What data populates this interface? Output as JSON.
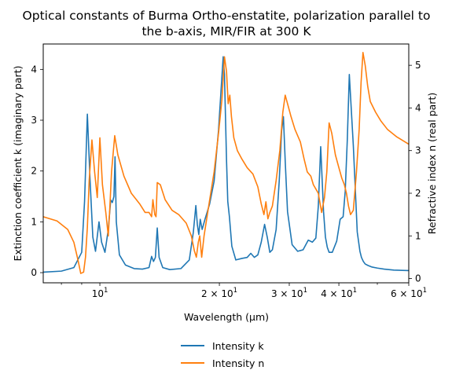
{
  "chart_data": {
    "type": "line",
    "title_line1": "Optical constants of Burma Ortho-enstatite, polarization parallel to",
    "title_line2": "the b-axis, MIR/FIR at 300 K",
    "xlabel": "Wavelength (μm)",
    "ylabel_left": "Extinction coefficient k (imaginary part)",
    "ylabel_right": "Refractive index n (real part)",
    "x_scale": "log",
    "xlim": [
      7.2,
      60
    ],
    "ylim_left": [
      -0.2,
      4.5
    ],
    "ylim_right": [
      -0.1,
      5.5
    ],
    "x_tick_labels": [
      {
        "value": 10,
        "base": "10",
        "exp": "1"
      },
      {
        "value": 20,
        "base": "2 × 10",
        "exp": "1"
      },
      {
        "value": 30,
        "base": "3 × 10",
        "exp": "1"
      },
      {
        "value": 40,
        "base": "4 × 10",
        "exp": "1"
      },
      {
        "value": 60,
        "base": "6 × 10",
        "exp": "1"
      }
    ],
    "y_left_ticks": [
      "0",
      "1",
      "2",
      "3",
      "4"
    ],
    "y_right_ticks": [
      "0",
      "1",
      "2",
      "3",
      "4",
      "5"
    ],
    "legend_placement": "bottom-center",
    "grid": false,
    "series": [
      {
        "name": "Intensity k",
        "axis": "left",
        "color": "#1f77b4",
        "x": [
          7.2,
          8.0,
          8.6,
          9.0,
          9.15,
          9.3,
          9.45,
          9.6,
          9.75,
          9.95,
          10.1,
          10.3,
          10.5,
          10.65,
          10.75,
          10.85,
          10.92,
          11.0,
          11.2,
          11.6,
          12.2,
          12.8,
          13.3,
          13.5,
          13.65,
          13.8,
          13.95,
          14.1,
          14.4,
          15.0,
          16.0,
          16.8,
          17.2,
          17.45,
          17.6,
          17.75,
          17.9,
          18.1,
          18.4,
          18.9,
          19.4,
          19.9,
          20.2,
          20.45,
          20.6,
          20.85,
          21.0,
          21.2,
          21.5,
          22.0,
          22.8,
          23.5,
          24.0,
          24.5,
          25.0,
          25.5,
          26.0,
          26.4,
          26.8,
          27.2,
          27.8,
          28.3,
          28.7,
          29.0,
          29.3,
          29.7,
          30.5,
          31.5,
          32.5,
          33.5,
          34.3,
          35.0,
          35.5,
          36.0,
          36.6,
          37.0,
          37.4,
          37.8,
          38.5,
          39.5,
          40.3,
          41.0,
          41.5,
          42.0,
          42.5,
          43.5,
          44.5,
          45.2,
          45.6,
          46.1,
          46.6,
          47.4,
          48.5,
          50.0,
          52.0,
          55.0,
          60.0
        ],
        "y": [
          0.01,
          0.03,
          0.1,
          0.4,
          1.4,
          3.12,
          1.8,
          0.7,
          0.42,
          1.0,
          0.6,
          0.4,
          0.85,
          1.43,
          1.38,
          1.5,
          2.28,
          1.0,
          0.35,
          0.15,
          0.08,
          0.07,
          0.1,
          0.32,
          0.22,
          0.3,
          0.88,
          0.3,
          0.1,
          0.06,
          0.08,
          0.25,
          0.8,
          1.32,
          0.95,
          0.75,
          1.05,
          0.85,
          1.05,
          1.35,
          1.8,
          2.8,
          3.6,
          4.25,
          3.9,
          2.2,
          1.4,
          1.1,
          0.52,
          0.25,
          0.28,
          0.3,
          0.38,
          0.3,
          0.35,
          0.6,
          0.95,
          0.7,
          0.4,
          0.45,
          0.85,
          1.8,
          2.8,
          3.07,
          2.2,
          1.2,
          0.55,
          0.42,
          0.45,
          0.64,
          0.6,
          0.68,
          1.3,
          2.48,
          1.2,
          0.7,
          0.5,
          0.4,
          0.4,
          0.62,
          1.05,
          1.1,
          1.6,
          2.6,
          3.9,
          2.5,
          0.8,
          0.42,
          0.3,
          0.22,
          0.17,
          0.14,
          0.11,
          0.09,
          0.07,
          0.05,
          0.04
        ]
      },
      {
        "name": "Intensity n",
        "axis": "right",
        "color": "#ff7f0e",
        "x": [
          7.2,
          7.8,
          8.3,
          8.6,
          8.8,
          8.95,
          9.1,
          9.2,
          9.3,
          9.4,
          9.55,
          9.7,
          9.85,
          10.0,
          10.15,
          10.35,
          10.5,
          10.6,
          10.7,
          10.9,
          11.1,
          11.5,
          12.0,
          12.6,
          13.0,
          13.3,
          13.5,
          13.6,
          13.75,
          13.85,
          13.95,
          14.2,
          14.6,
          15.2,
          15.8,
          16.5,
          17.0,
          17.3,
          17.5,
          17.7,
          17.85,
          18.05,
          18.3,
          18.8,
          19.4,
          19.9,
          20.3,
          20.6,
          20.85,
          21.05,
          21.25,
          21.45,
          21.75,
          22.2,
          22.8,
          23.5,
          24.3,
          25.0,
          25.5,
          25.9,
          26.2,
          26.5,
          26.8,
          27.2,
          27.8,
          28.4,
          28.9,
          29.3,
          29.7,
          30.3,
          31.0,
          32.0,
          32.7,
          33.3,
          34.0,
          34.5,
          35.0,
          35.5,
          36.2,
          36.8,
          37.3,
          37.8,
          38.4,
          39.2,
          40.0,
          40.7,
          41.3,
          41.8,
          42.3,
          42.8,
          43.5,
          44.3,
          45.0,
          45.5,
          46.0,
          46.6,
          47.3,
          48.0,
          49.5,
          51.0,
          53.0,
          56.0,
          60.0
        ],
        "y": [
          1.45,
          1.35,
          1.15,
          0.85,
          0.45,
          0.12,
          0.15,
          0.5,
          1.2,
          2.3,
          3.25,
          2.5,
          1.9,
          3.3,
          2.2,
          1.55,
          1.0,
          1.7,
          2.5,
          3.35,
          2.9,
          2.4,
          2.0,
          1.75,
          1.55,
          1.55,
          1.45,
          1.85,
          1.5,
          1.45,
          2.25,
          2.2,
          1.85,
          1.6,
          1.5,
          1.3,
          1.0,
          0.65,
          0.5,
          0.85,
          1.0,
          0.5,
          1.0,
          1.7,
          2.5,
          3.4,
          4.2,
          5.2,
          4.85,
          4.1,
          4.3,
          3.8,
          3.3,
          3.0,
          2.8,
          2.6,
          2.45,
          2.15,
          1.75,
          1.5,
          1.8,
          1.4,
          1.55,
          1.7,
          2.3,
          3.0,
          3.9,
          4.3,
          4.1,
          3.8,
          3.5,
          3.2,
          2.8,
          2.5,
          2.4,
          2.2,
          2.1,
          2.0,
          1.55,
          1.9,
          2.5,
          3.65,
          3.4,
          2.9,
          2.6,
          2.35,
          2.2,
          2.0,
          1.7,
          1.5,
          1.6,
          2.5,
          3.5,
          4.6,
          5.3,
          5.0,
          4.5,
          4.15,
          3.9,
          3.7,
          3.5,
          3.32,
          3.15
        ]
      }
    ]
  }
}
